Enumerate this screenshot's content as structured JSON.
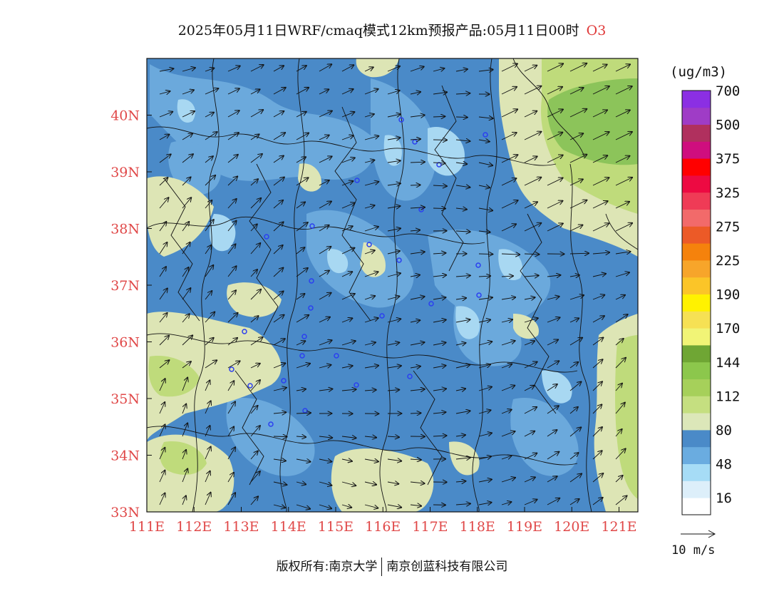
{
  "title": {
    "text": "2025年05月11日WRF/cmaq模式12km预报产品:05月11日00时",
    "species": "O3"
  },
  "map": {
    "lon_range": [
      111,
      121.4
    ],
    "lat_range": [
      33,
      41
    ],
    "lon_ticks": [
      "111E",
      "112E",
      "113E",
      "114E",
      "115E",
      "116E",
      "117E",
      "118E",
      "119E",
      "120E",
      "121E"
    ],
    "lat_ticks": [
      "33N",
      "34N",
      "35N",
      "36N",
      "37N",
      "38N",
      "39N",
      "40N"
    ],
    "fill_colors": {
      "level_16_48": "#a8d8f2",
      "level_48_80": "#6ba9dc",
      "level_80_base": "#4a8ac8",
      "level_80_112": "#dde5b5",
      "level_112_144": "#bfdb7b",
      "level_144_plus": "#8cc45a",
      "boundary": "#111111",
      "station": "#2b3ff0"
    }
  },
  "colorbar": {
    "unit": "(ug/m3)",
    "levels": [
      "16",
      "48",
      "80",
      "112",
      "144",
      "170",
      "190",
      "225",
      "275",
      "325",
      "375",
      "500",
      "700"
    ],
    "colors": [
      "#ffffff",
      "#ddeffa",
      "#a6dcf6",
      "#6aace0",
      "#4a8ac8",
      "#dce7b9",
      "#c5df80",
      "#a6d05a",
      "#8cc74c",
      "#6fa634",
      "#f1f476",
      "#f6e154",
      "#fff200",
      "#fbc528",
      "#f7a52a",
      "#f5820c",
      "#ec5a27",
      "#f26a6a",
      "#ef3b56",
      "#ed0a42",
      "#ff0000",
      "#cf0e7e",
      "#b0305e",
      "#9f3cc6",
      "#8b2fe3"
    ]
  },
  "wind": {
    "reference_label": "10 m/s"
  },
  "credit": {
    "left": "版权所有:南京大学",
    "right": "南京创蓝科技有限公司"
  }
}
